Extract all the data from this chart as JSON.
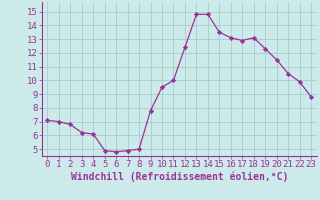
{
  "x": [
    0,
    1,
    2,
    3,
    4,
    5,
    6,
    7,
    8,
    9,
    10,
    11,
    12,
    13,
    14,
    15,
    16,
    17,
    18,
    19,
    20,
    21,
    22,
    23
  ],
  "y": [
    7.1,
    7.0,
    6.8,
    6.2,
    6.1,
    4.9,
    4.8,
    4.9,
    5.0,
    7.8,
    9.5,
    10.0,
    12.4,
    14.8,
    14.8,
    13.5,
    13.1,
    12.9,
    13.1,
    12.3,
    11.5,
    10.5,
    9.9,
    8.8
  ],
  "line_color": "#993399",
  "marker": "D",
  "markersize": 2.2,
  "linewidth": 0.9,
  "bg_color": "#cceaea",
  "grid_color": "#aacccc",
  "xlabel": "Windchill (Refroidissement éolien,°C)",
  "tick_color": "#993399",
  "ylim": [
    4.5,
    15.7
  ],
  "xlim": [
    -0.5,
    23.5
  ],
  "yticks": [
    5,
    6,
    7,
    8,
    9,
    10,
    11,
    12,
    13,
    14,
    15
  ],
  "xticks": [
    0,
    1,
    2,
    3,
    4,
    5,
    6,
    7,
    8,
    9,
    10,
    11,
    12,
    13,
    14,
    15,
    16,
    17,
    18,
    19,
    20,
    21,
    22,
    23
  ],
  "fontsize": 6.5,
  "xlabel_fontsize": 7
}
